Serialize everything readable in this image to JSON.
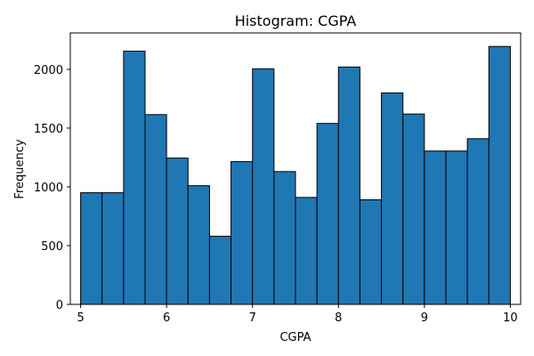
{
  "chart_data": {
    "type": "bar",
    "title": "Histogram: CGPA",
    "xlabel": "CGPA",
    "ylabel": "Frequency",
    "bin_edges": [
      5.0,
      5.25,
      5.5,
      5.75,
      6.0,
      6.25,
      6.5,
      6.75,
      7.0,
      7.25,
      7.5,
      7.75,
      8.0,
      8.25,
      8.5,
      8.75,
      9.0,
      9.25,
      9.5,
      9.75,
      10.0
    ],
    "values": [
      950,
      950,
      2155,
      1615,
      1245,
      1010,
      580,
      1215,
      2005,
      1130,
      910,
      1540,
      2020,
      890,
      1800,
      1620,
      1305,
      1305,
      1410,
      2195
    ],
    "xlim": [
      4.88,
      10.12
    ],
    "ylim": [
      0,
      2310
    ],
    "xticks": [
      5,
      6,
      7,
      8,
      9,
      10
    ],
    "yticks": [
      0,
      500,
      1000,
      1500,
      2000
    ],
    "bar_color": "#1f77b4",
    "edge_color": "#000000",
    "grid": false,
    "legend": "none"
  }
}
